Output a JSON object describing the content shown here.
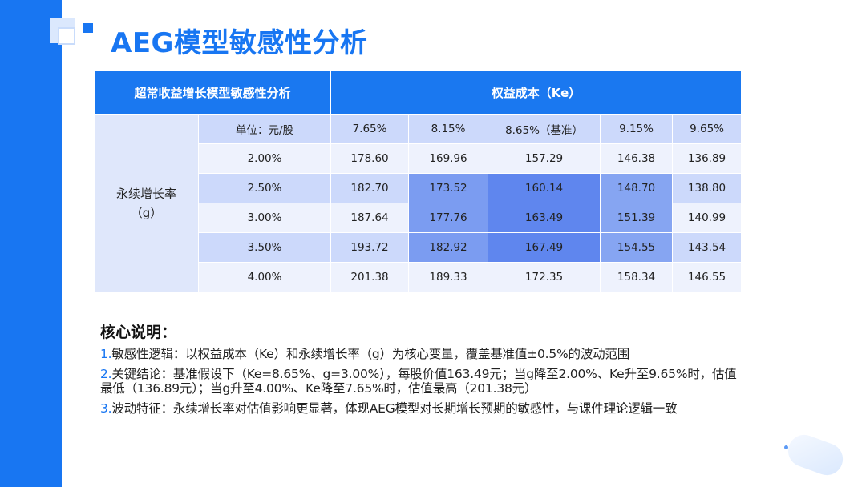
{
  "title": "AEG模型敏感性分析",
  "table": {
    "corner_header": "超常收益增长模型敏感性分析",
    "ke_header": "权益成本（Ke）",
    "row_header": "永续增长率（g）",
    "unit_label": "单位：元/股",
    "ke_values": [
      "7.65%",
      "8.15%",
      "8.65%（基准）",
      "9.15%",
      "9.65%"
    ],
    "rows": [
      {
        "g": "2.00%",
        "values": [
          "178.60",
          "169.96",
          "157.29",
          "146.38",
          "136.89"
        ]
      },
      {
        "g": "2.50%",
        "values": [
          "182.70",
          "173.52",
          "160.14",
          "148.70",
          "138.80"
        ]
      },
      {
        "g": "3.00%",
        "values": [
          "187.64",
          "177.76",
          "163.49",
          "151.39",
          "140.99"
        ]
      },
      {
        "g": "3.50%",
        "values": [
          "193.72",
          "182.92",
          "167.49",
          "154.55",
          "143.54"
        ]
      },
      {
        "g": "4.00%",
        "values": [
          "201.38",
          "189.33",
          "172.35",
          "158.34",
          "146.55"
        ]
      }
    ]
  },
  "notes": {
    "heading": "核心说明：",
    "items": [
      {
        "num": "1.",
        "text": "敏感性逻辑：以权益成本（Ke）和永续增长率（g）为核心变量，覆盖基准值±0.5%的波动范围"
      },
      {
        "num": "2.",
        "text": "关键结论：基准假设下（Ke=8.65%、g=3.00%），每股价值163.49元；当g降至2.00%、Ke升至9.65%时，估值最低（136.89元）；当g升至4.00%、Ke降至7.65%时，估值最高（201.38元）"
      },
      {
        "num": "3.",
        "text": "波动特征：永续增长率对估值影响更显著，体现AEG模型对长期增长预期的敏感性，与课件理论逻辑一致"
      }
    ]
  }
}
